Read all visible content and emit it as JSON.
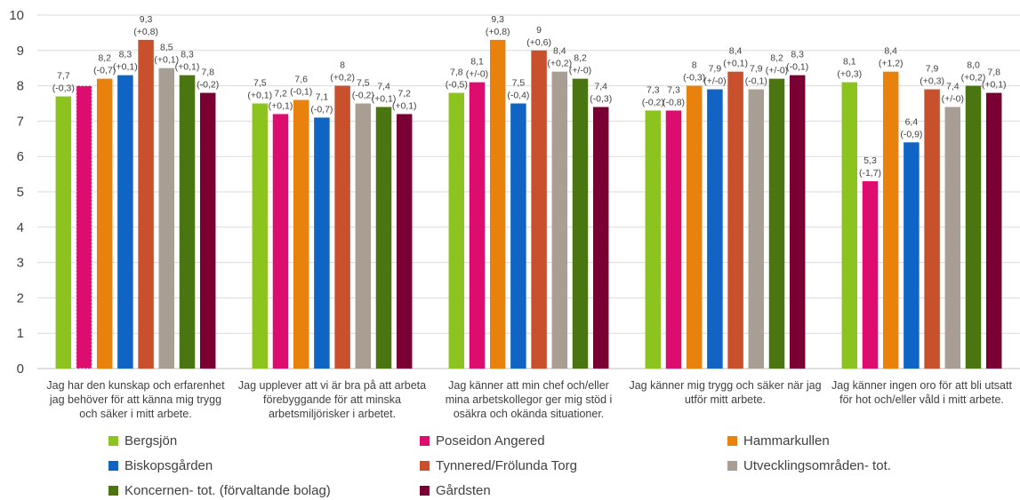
{
  "chart_data": {
    "type": "bar",
    "ylim": [
      0,
      10
    ],
    "yticks": [
      0,
      1,
      2,
      3,
      4,
      5,
      6,
      7,
      8,
      9,
      10
    ],
    "grid": true,
    "legend_position": "bottom",
    "categories": [
      [
        "Jag har den kunskap och erfarenhet",
        "jag behöver för att känna mig trygg",
        "och säker i mitt arbete."
      ],
      [
        "Jag upplever att vi är bra på att arbeta",
        "förebyggande för att minska",
        "arbetsmiljörisker i arbetet."
      ],
      [
        "Jag känner att min chef och/eller",
        "mina arbetskollegor ger mig stöd i",
        "osäkra och okända situationer."
      ],
      [
        "Jag känner mig trygg och säker när jag",
        "utför mitt arbete."
      ],
      [
        "Jag känner ingen oro för att bli utsatt",
        "för hot och/eller våld i mitt arbete."
      ]
    ],
    "series": [
      {
        "name": "Bergsjön",
        "color": "#8cc31e",
        "values": [
          7.7,
          7.5,
          7.8,
          7.3,
          8.1
        ],
        "labels": [
          [
            "7,7",
            "(-0,3)"
          ],
          [
            "7,5",
            "(+0,1)"
          ],
          [
            "7,8",
            "(-0,5)"
          ],
          [
            "7,3",
            "(-0,2)"
          ],
          [
            "8,1",
            "(+0,3)"
          ]
        ]
      },
      {
        "name": "Poseidon Angered",
        "color": "#dc0d6e",
        "values": [
          8.0,
          7.2,
          8.1,
          7.3,
          5.3
        ],
        "labels": [
          null,
          [
            "7,2",
            "(+0,1)"
          ],
          [
            "8,1",
            "(+/-0)"
          ],
          [
            "7,3",
            "(-0,8)"
          ],
          [
            "5,3",
            "(-1,7)"
          ]
        ]
      },
      {
        "name": "Hammarkullen",
        "color": "#e8820c",
        "values": [
          8.2,
          7.6,
          9.3,
          8.0,
          8.4
        ],
        "labels": [
          [
            "8,2",
            "(-0,7)"
          ],
          [
            "7,6",
            "(-0,1)"
          ],
          [
            "9,3",
            "(+0,8)"
          ],
          [
            "8",
            "(-0,3)"
          ],
          [
            "8,4",
            "(+1,2)"
          ]
        ]
      },
      {
        "name": "Biskopsgården",
        "color": "#0f64c4",
        "values": [
          8.3,
          7.1,
          7.5,
          7.9,
          6.4
        ],
        "labels": [
          [
            "8,3",
            "(+0,1)"
          ],
          [
            "7,1",
            "(-0,7)"
          ],
          [
            "7,5",
            "(-0,4)"
          ],
          [
            "7,9",
            "(+/-0)"
          ],
          [
            "6,4",
            "(-0,9)"
          ]
        ]
      },
      {
        "name": "Tynnered/Frölunda Torg",
        "color": "#c8502d",
        "values": [
          9.3,
          8.0,
          9.0,
          8.4,
          7.9
        ],
        "labels": [
          [
            "9,3",
            "(+0,8)"
          ],
          [
            "8",
            "(+0,2)"
          ],
          [
            "9",
            "(+0,6)"
          ],
          [
            "8,4",
            "(+0,1)"
          ],
          [
            "7,9",
            "(+0,3)"
          ]
        ]
      },
      {
        "name": "Utvecklingsområden- tot.",
        "color": "#a89e94",
        "values": [
          8.5,
          7.5,
          8.4,
          7.9,
          7.4
        ],
        "labels": [
          [
            "8,5",
            "(+0,1)"
          ],
          [
            "7,5",
            "(-0,2)"
          ],
          [
            "8,4",
            "(+0,2)"
          ],
          [
            "7,9",
            "(-0,1)"
          ],
          [
            "7,4",
            "(+/-0)"
          ]
        ]
      },
      {
        "name": "Koncernen- tot. (förvaltande bolag)",
        "color": "#4b7510",
        "values": [
          8.3,
          7.4,
          8.2,
          8.2,
          8.0
        ],
        "labels": [
          [
            "8,3",
            "(+0,1)"
          ],
          [
            "7,4",
            "(+0,1)"
          ],
          [
            "8,2",
            "(+/-0)"
          ],
          [
            "8,2",
            "(+/-0)"
          ],
          [
            "8,0",
            "(+0,2)"
          ]
        ]
      },
      {
        "name": "Gårdsten",
        "color": "#7a0033",
        "values": [
          7.8,
          7.2,
          7.4,
          8.3,
          7.8
        ],
        "labels": [
          [
            "7,8",
            "(-0,2)"
          ],
          [
            "7,2",
            "(+0,1)"
          ],
          [
            "7,4",
            "(-0,3)"
          ],
          [
            "8,3",
            "(-0,1)"
          ],
          [
            "7,8",
            "(+0,1)"
          ]
        ]
      }
    ]
  }
}
